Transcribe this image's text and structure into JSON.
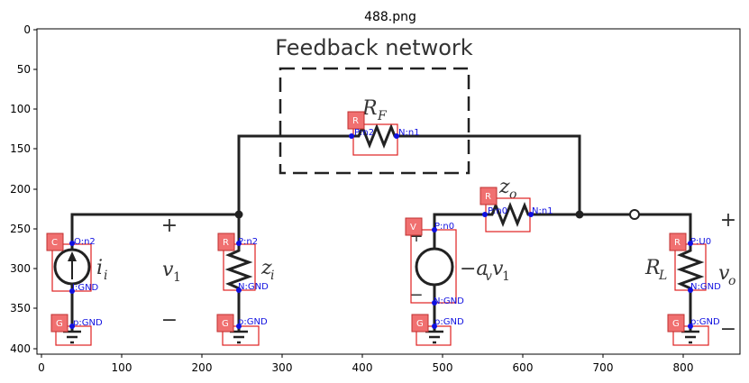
{
  "plot": {
    "title": "488.png",
    "x_ticks": [
      "0",
      "100",
      "200",
      "300",
      "400",
      "500",
      "600",
      "700",
      "800"
    ],
    "y_ticks": [
      "0",
      "50",
      "100",
      "150",
      "200",
      "250",
      "300",
      "350",
      "400"
    ]
  },
  "diagram": {
    "feedback_title": "Feedback network",
    "rf_label": "R",
    "rf_sub": "F",
    "zo_label": "z",
    "zo_sub": "o",
    "ii_label": "i",
    "ii_sub": "i",
    "v1_label": "v",
    "v1_sub": "1",
    "zi_label": "z",
    "zi_sub": "i",
    "src_label": "−a",
    "src_sub": "v",
    "src_tail": "v",
    "src_tail_sub": "1",
    "rl_label": "R",
    "rl_sub": "L",
    "vo_label": "v",
    "vo_sub": "o",
    "plus": "+",
    "minus": "−"
  },
  "annotations": {
    "badges": {
      "rf": "R",
      "zo": "R",
      "cs": "C",
      "zi": "R",
      "vs": "V",
      "rl": "R",
      "g1": "G",
      "g2": "G",
      "g3": "G",
      "g4": "G"
    },
    "pins": {
      "rf_p": "P:n2",
      "rf_n": "N:n1",
      "zo_p": "P:n0",
      "zo_n": "N:n1",
      "cs_o": "O:n2",
      "cs_i": "I:GND",
      "zi_p": "P:n2",
      "zi_n": "N:GND",
      "vs_p": "P:n0",
      "vs_n": "N:GND",
      "rl_p": "P:U0",
      "rl_n": "N:GND",
      "g1": "p:GND",
      "g2": "p:GND",
      "g3": "p:GND",
      "g4": "p:GND"
    }
  }
}
